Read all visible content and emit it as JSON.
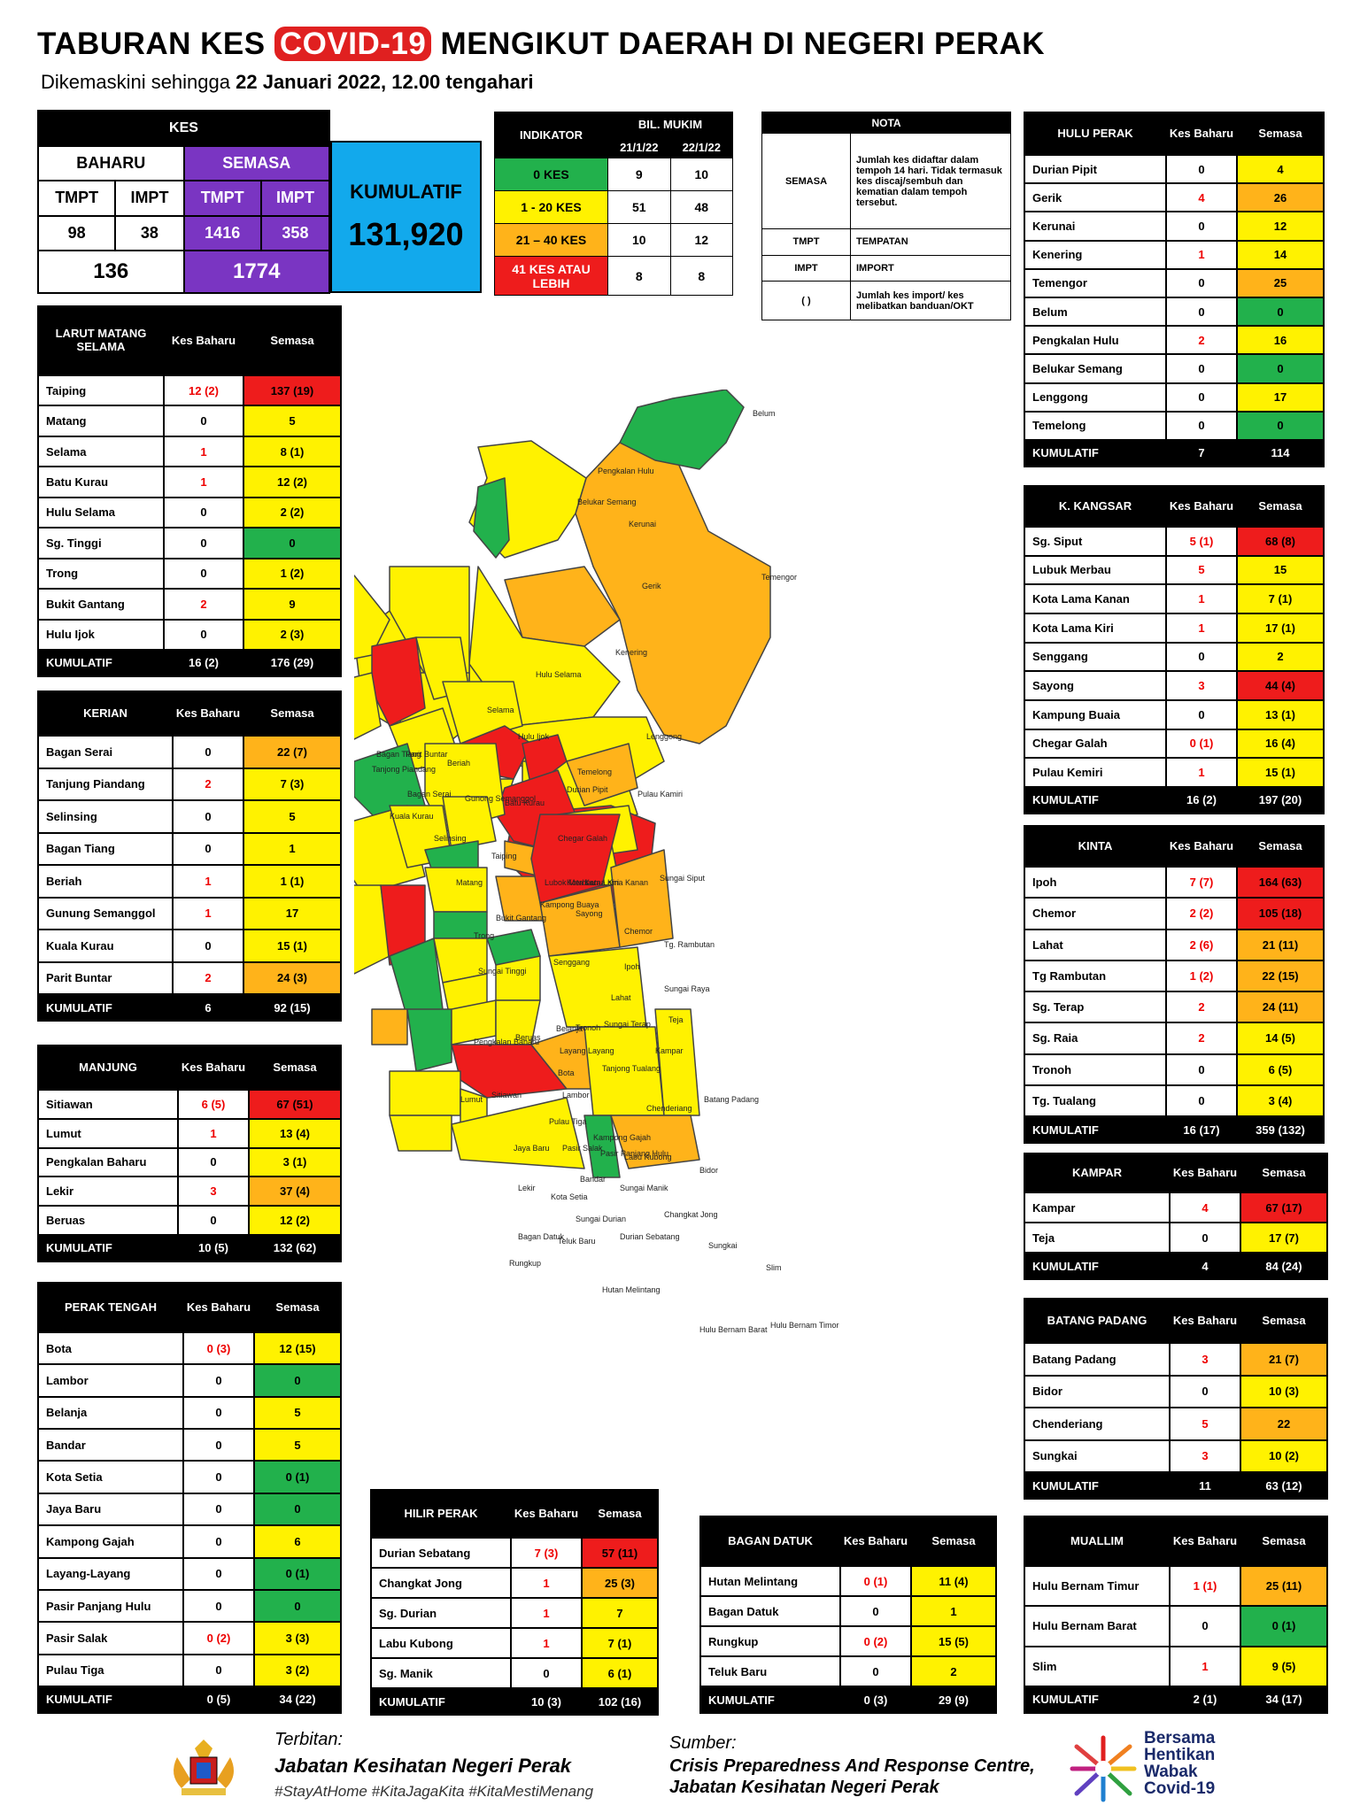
{
  "header": {
    "title_pre": "TABURAN KES",
    "title_hl": "COVID-19",
    "title_post": "MENGIKUT DAERAH DI NEGERI PERAK",
    "sub_pre": "Dikemaskini sehingga",
    "sub_date": "22 Januari 2022, 12.00 tengahari"
  },
  "kes": {
    "title": "KES",
    "baharu": "BAHARU",
    "semasa": "SEMASA",
    "tmpt": "TMPT",
    "impt": "IMPT",
    "kumulatif_label": "KUMULATIF",
    "b_tmpt": "98",
    "b_impt": "38",
    "s_tmpt": "1416",
    "s_impt": "358",
    "b_total": "136",
    "s_total": "1774",
    "kumulatif": "131,920"
  },
  "indikator": {
    "title": "INDIKATOR",
    "bil": "BIL. MUKIM",
    "d1": "21/1/22",
    "d2": "22/1/22",
    "rows": [
      {
        "label": "0 KES",
        "a": "9",
        "b": "10",
        "color": "#22b14c"
      },
      {
        "label": "1 - 20 KES",
        "a": "51",
        "b": "48",
        "color": "#fff200"
      },
      {
        "label": "21 – 40 KES",
        "a": "10",
        "b": "12",
        "color": "#ffb31a"
      },
      {
        "label": "41 KES ATAU LEBIH",
        "a": "8",
        "b": "8",
        "color": "#ee1c1c"
      }
    ]
  },
  "nota": {
    "title": "NOTA",
    "rows": [
      {
        "k": "SEMASA",
        "v": "Jumlah kes didaftar dalam tempoh 14 hari. Tidak termasuk kes discaj/sembuh dan kematian dalam tempoh tersebut."
      },
      {
        "k": "TMPT",
        "v": "TEMPATAN"
      },
      {
        "k": "IMPT",
        "v": "IMPORT"
      },
      {
        "k": "(   )",
        "v": "Jumlah kes import/ kes melibatkan banduan/OKT"
      }
    ]
  },
  "col": {
    "kes_baharu": "Kes Baharu",
    "semasa": "Semasa",
    "kumulatif": "KUMULATIF"
  },
  "districts": [
    {
      "id": "larut",
      "name": "LARUT MATANG SELAMA",
      "rows": [
        [
          "Taiping",
          "12 (2)",
          "137 (19)",
          "r"
        ],
        [
          "Matang",
          "0",
          "5",
          "y"
        ],
        [
          "Selama",
          "1",
          "8 (1)",
          "y"
        ],
        [
          "Batu Kurau",
          "1",
          "12 (2)",
          "y"
        ],
        [
          "Hulu Selama",
          "0",
          "2 (2)",
          "y"
        ],
        [
          "Sg. Tinggi",
          "0",
          "0",
          "g"
        ],
        [
          "Trong",
          "0",
          "1 (2)",
          "y"
        ],
        [
          "Bukit Gantang",
          "2",
          "9",
          "y"
        ],
        [
          "Hulu Ijok",
          "0",
          "2 (3)",
          "y"
        ]
      ],
      "kum": [
        "16 (2)",
        "176 (29)"
      ]
    },
    {
      "id": "kerian",
      "name": "KERIAN",
      "rows": [
        [
          "Bagan Serai",
          "0",
          "22 (7)",
          "o"
        ],
        [
          "Tanjung Piandang",
          "2",
          "7 (3)",
          "y"
        ],
        [
          "Selinsing",
          "0",
          "5",
          "y"
        ],
        [
          "Bagan Tiang",
          "0",
          "1",
          "y"
        ],
        [
          "Beriah",
          "1",
          "1 (1)",
          "y"
        ],
        [
          "Gunung Semanggol",
          "1",
          "17",
          "y"
        ],
        [
          "Kuala Kurau",
          "0",
          "15 (1)",
          "y"
        ],
        [
          "Parit Buntar",
          "2",
          "24 (3)",
          "o"
        ]
      ],
      "kum": [
        "6",
        "92 (15)"
      ]
    },
    {
      "id": "manjung",
      "name": "MANJUNG",
      "rows": [
        [
          "Sitiawan",
          "6 (5)",
          "67 (51)",
          "r"
        ],
        [
          "Lumut",
          "1",
          "13 (4)",
          "y"
        ],
        [
          "Pengkalan Baharu",
          "0",
          "3 (1)",
          "y"
        ],
        [
          "Lekir",
          "3",
          "37 (4)",
          "o"
        ],
        [
          "Beruas",
          "0",
          "12 (2)",
          "y"
        ]
      ],
      "kum": [
        "10 (5)",
        "132 (62)"
      ]
    },
    {
      "id": "tengah",
      "name": "PERAK TENGAH",
      "rows": [
        [
          "Bota",
          "0 (3)",
          "12 (15)",
          "y"
        ],
        [
          "Lambor",
          "0",
          "0",
          "g"
        ],
        [
          "Belanja",
          "0",
          "5",
          "y"
        ],
        [
          "Bandar",
          "0",
          "5",
          "y"
        ],
        [
          "Kota Setia",
          "0",
          "0 (1)",
          "g"
        ],
        [
          "Jaya Baru",
          "0",
          "0",
          "g"
        ],
        [
          "Kampong Gajah",
          "0",
          "6",
          "y"
        ],
        [
          "Layang-Layang",
          "0",
          "0 (1)",
          "g"
        ],
        [
          "Pasir Panjang Hulu",
          "0",
          "0",
          "g"
        ],
        [
          "Pasir Salak",
          "0 (2)",
          "3 (3)",
          "y"
        ],
        [
          "Pulau Tiga",
          "0",
          "3 (2)",
          "y"
        ]
      ],
      "kum": [
        "0 (5)",
        "34 (22)"
      ]
    },
    {
      "id": "hilir",
      "name": "HILIR PERAK",
      "rows": [
        [
          "Durian Sebatang",
          "7 (3)",
          "57 (11)",
          "r"
        ],
        [
          "Changkat Jong",
          "1",
          "25 (3)",
          "o"
        ],
        [
          "Sg. Durian",
          "1",
          "7",
          "y"
        ],
        [
          "Labu Kubong",
          "1",
          "7 (1)",
          "y"
        ],
        [
          "Sg. Manik",
          "0",
          "6 (1)",
          "y"
        ]
      ],
      "kum": [
        "10 (3)",
        "102 (16)"
      ]
    },
    {
      "id": "bagan",
      "name": "BAGAN DATUK",
      "rows": [
        [
          "Hutan Melintang",
          "0 (1)",
          "11 (4)",
          "y"
        ],
        [
          "Bagan Datuk",
          "0",
          "1",
          "y"
        ],
        [
          "Rungkup",
          "0 (2)",
          "15 (5)",
          "y"
        ],
        [
          "Teluk Baru",
          "0",
          "2",
          "y"
        ]
      ],
      "kum": [
        "0 (3)",
        "29 (9)"
      ]
    },
    {
      "id": "hulu",
      "name": "HULU PERAK",
      "rows": [
        [
          "Durian Pipit",
          "0",
          "4",
          "y"
        ],
        [
          "Gerik",
          "4",
          "26",
          "o"
        ],
        [
          "Kerunai",
          "0",
          "12",
          "y"
        ],
        [
          "Kenering",
          "1",
          "14",
          "y"
        ],
        [
          "Temengor",
          "0",
          "25",
          "o"
        ],
        [
          "Belum",
          "0",
          "0",
          "g"
        ],
        [
          "Pengkalan Hulu",
          "2",
          "16",
          "y"
        ],
        [
          "Belukar Semang",
          "0",
          "0",
          "g"
        ],
        [
          "Lenggong",
          "0",
          "17",
          "y"
        ],
        [
          "Temelong",
          "0",
          "0",
          "g"
        ]
      ],
      "kum": [
        "7",
        "114"
      ]
    },
    {
      "id": "kangsar",
      "name": "K. KANGSAR",
      "rows": [
        [
          "Sg. Siput",
          "5 (1)",
          "68 (8)",
          "r"
        ],
        [
          "Lubuk Merbau",
          "5",
          "15",
          "y"
        ],
        [
          "Kota Lama Kanan",
          "1",
          "7 (1)",
          "y"
        ],
        [
          "Kota Lama Kiri",
          "1",
          "17 (1)",
          "y"
        ],
        [
          "Senggang",
          "0",
          "2",
          "y"
        ],
        [
          "Sayong",
          "3",
          "44 (4)",
          "r"
        ],
        [
          "Kampung Buaia",
          "0",
          "13 (1)",
          "y"
        ],
        [
          "Chegar Galah",
          "0 (1)",
          "16 (4)",
          "y"
        ],
        [
          "Pulau Kemiri",
          "1",
          "15 (1)",
          "y"
        ]
      ],
      "kum": [
        "16 (2)",
        "197 (20)"
      ]
    },
    {
      "id": "kinta",
      "name": "KINTA",
      "rows": [
        [
          "Ipoh",
          "7 (7)",
          "164 (63)",
          "r"
        ],
        [
          "Chemor",
          "2 (2)",
          "105 (18)",
          "r"
        ],
        [
          "Lahat",
          "2 (6)",
          "21 (11)",
          "o"
        ],
        [
          "Tg Rambutan",
          "1 (2)",
          "22 (15)",
          "o"
        ],
        [
          "Sg. Terap",
          "2",
          "24 (11)",
          "o"
        ],
        [
          "Sg. Raia",
          "2",
          "14 (5)",
          "y"
        ],
        [
          "Tronoh",
          "0",
          "6 (5)",
          "y"
        ],
        [
          "Tg. Tualang",
          "0",
          "3 (4)",
          "y"
        ]
      ],
      "kum": [
        "16 (17)",
        "359 (132)"
      ]
    },
    {
      "id": "kampar",
      "name": "KAMPAR",
      "rows": [
        [
          "Kampar",
          "4",
          "67 (17)",
          "r"
        ],
        [
          "Teja",
          "0",
          "17 (7)",
          "y"
        ]
      ],
      "kum": [
        "4",
        "84 (24)"
      ]
    },
    {
      "id": "batang",
      "name": "BATANG PADANG",
      "rows": [
        [
          "Batang Padang",
          "3",
          "21 (7)",
          "o"
        ],
        [
          "Bidor",
          "0",
          "10 (3)",
          "y"
        ],
        [
          "Chenderiang",
          "5",
          "22",
          "o"
        ],
        [
          "Sungkai",
          "3",
          "10 (2)",
          "y"
        ]
      ],
      "kum": [
        "11",
        "63 (12)"
      ]
    },
    {
      "id": "muallim",
      "name": "MUALLIM",
      "rows": [
        [
          "Hulu Bernam Timur",
          "1 (1)",
          "25 (11)",
          "o"
        ],
        [
          "Hulu Bernam Barat",
          "0",
          "0 (1)",
          "g"
        ],
        [
          "Slim",
          "1",
          "9 (5)",
          "y"
        ]
      ],
      "kum": [
        "2 (1)",
        "34 (17)"
      ]
    }
  ],
  "map_labels": [
    "Belum",
    "Pengkalan Hulu",
    "Belukar Semang",
    "Kerunai",
    "Gerik",
    "Temengor",
    "Kenering",
    "Hulu Selama",
    "Selama",
    "Hulu Ijok",
    "Lenggong",
    "Temelong",
    "Durian Pipit",
    "Pulau Kamiri",
    "Bagan Tiang",
    "Parit Buntar",
    "Tanjong Piandang",
    "Bagan Serai",
    "Beriah",
    "Gunong Semanggol",
    "Kuala Kurau",
    "Batu Kurau",
    "Selinsing",
    "Taiping",
    "Chegar Galah",
    "Sungai Siput",
    "Matang",
    "Bukit Gantang",
    "Trong",
    "Sayong",
    "Chemor",
    "Sungai Tinggi",
    "Senggang",
    "Ipoh",
    "Tg. Rambutan",
    "Lahat",
    "Sungai Raya",
    "Sungai Terap",
    "Teja",
    "Pengkalan Baharu",
    "Beruas",
    "Belanja",
    "Layang Layang",
    "Bota",
    "Tanjong Tualang",
    "Kampar",
    "Lumut",
    "Sitiawan",
    "Lambor",
    "Batang Padang",
    "Chenderiang",
    "Pulau Tiga",
    "Jaya Baru",
    "Pasir Salak",
    "Labu Kubong",
    "Bandar",
    "Sungai Manik",
    "Kota Setia",
    "Bidor",
    "Lekir",
    "Changkat Jong",
    "Bagan Datuk",
    "Teluk Baru",
    "Durian Sebatang",
    "Sungkai",
    "Slim",
    "Rungkup",
    "Hutan Melintang",
    "Hulu Bernam Timor",
    "Hulu Bernam Barat",
    "Kampong Gajah",
    "Pasir Panjang Hulu",
    "Sungai Durian",
    "Kota Lama Kanan",
    "Kota Lama Kiri",
    "Lubok Merbau",
    "Kampong Buaya",
    "Tronoh"
  ],
  "footer": {
    "terbitan": "Terbitan:",
    "jabatan": "Jabatan Kesihatan Negeri Perak",
    "tags": "#StayAtHome #KitaJagaKita #KitaMestiMenang",
    "sumber": "Sumber:",
    "cprc": "Crisis Preparedness And Response Centre,",
    "jkn": "Jabatan Kesihatan Negeri Perak",
    "logo1": "Bersama",
    "logo2": "Hentikan",
    "logo3": "Wabak",
    "logo4": "Covid-19"
  },
  "colors": {
    "green": "#22b14c",
    "yellow": "#fff200",
    "orange": "#ffb31a",
    "red": "#ee1c1c"
  }
}
